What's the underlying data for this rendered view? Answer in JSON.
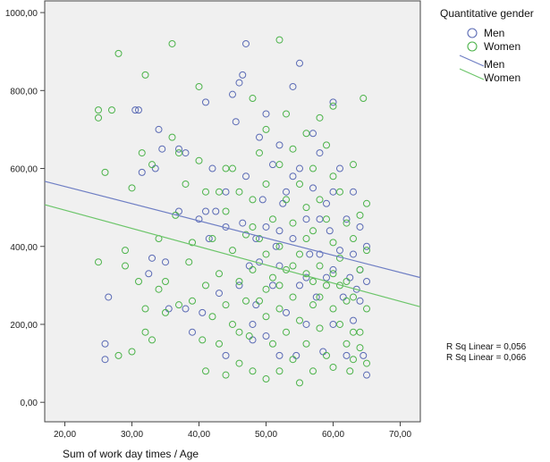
{
  "chart_data": {
    "type": "scatter",
    "xlabel": "Sum of work day times / Age",
    "ylabel": "",
    "xlim": [
      17,
      73
    ],
    "ylim": [
      -50,
      1030
    ],
    "x_ticks": [
      20,
      30,
      40,
      50,
      60,
      70
    ],
    "y_ticks": [
      0,
      200,
      400,
      600,
      800,
      1000
    ],
    "x_tick_labels": [
      "20,00",
      "30,00",
      "40,00",
      "50,00",
      "60,00",
      "70,00"
    ],
    "y_tick_labels": [
      "0,00",
      "200,00",
      "400,00",
      "600,00",
      "800,00",
      "1000,00"
    ],
    "legend": {
      "title": "Quantitative gender",
      "entries": [
        {
          "label": "Men",
          "kind": "marker",
          "color": "#5b6bb5"
        },
        {
          "label": "Women",
          "kind": "marker",
          "color": "#4cb34a"
        },
        {
          "label": "Men",
          "kind": "line",
          "color": "#6f7fc4"
        },
        {
          "label": "Women",
          "kind": "line",
          "color": "#6cc56a"
        }
      ]
    },
    "annotations": [
      "R Sq Linear = 0,056",
      "R Sq Linear = 0,066"
    ],
    "series": [
      {
        "name": "Men",
        "color": "#5b6bb5",
        "fit_line": {
          "x": [
            17,
            73
          ],
          "y": [
            567,
            320
          ]
        },
        "points": [
          [
            26,
            150
          ],
          [
            26,
            110
          ],
          [
            26.5,
            270
          ],
          [
            30.5,
            750
          ],
          [
            31,
            750
          ],
          [
            31.5,
            590
          ],
          [
            32.5,
            330
          ],
          [
            33,
            370
          ],
          [
            33.5,
            600
          ],
          [
            34,
            700
          ],
          [
            34.5,
            650
          ],
          [
            35,
            360
          ],
          [
            35.5,
            240
          ],
          [
            37,
            650
          ],
          [
            37,
            490
          ],
          [
            38,
            640
          ],
          [
            38,
            240
          ],
          [
            39,
            180
          ],
          [
            40,
            470
          ],
          [
            40.5,
            230
          ],
          [
            41,
            770
          ],
          [
            41,
            490
          ],
          [
            41.5,
            420
          ],
          [
            42,
            600
          ],
          [
            42.5,
            490
          ],
          [
            43,
            280
          ],
          [
            44,
            540
          ],
          [
            44,
            450
          ],
          [
            44,
            120
          ],
          [
            45,
            790
          ],
          [
            45.5,
            720
          ],
          [
            46,
            820
          ],
          [
            46.5,
            840
          ],
          [
            46.5,
            460
          ],
          [
            47,
            920
          ],
          [
            47,
            580
          ],
          [
            47.5,
            350
          ],
          [
            48,
            160
          ],
          [
            48.5,
            250
          ],
          [
            48.5,
            420
          ],
          [
            49,
            680
          ],
          [
            49,
            360
          ],
          [
            49.5,
            520
          ],
          [
            50,
            740
          ],
          [
            50,
            450
          ],
          [
            50,
            170
          ],
          [
            51,
            610
          ],
          [
            51,
            300
          ],
          [
            51.5,
            400
          ],
          [
            52,
            660
          ],
          [
            52,
            350
          ],
          [
            52,
            120
          ],
          [
            52.5,
            510
          ],
          [
            53,
            540
          ],
          [
            53,
            230
          ],
          [
            54,
            810
          ],
          [
            54,
            420
          ],
          [
            54.5,
            120
          ],
          [
            55,
            870
          ],
          [
            55,
            600
          ],
          [
            55,
            300
          ],
          [
            56,
            470
          ],
          [
            56,
            200
          ],
          [
            56.5,
            380
          ],
          [
            57,
            690
          ],
          [
            57,
            550
          ],
          [
            57.5,
            270
          ],
          [
            58,
            640
          ],
          [
            58,
            380
          ],
          [
            58.5,
            130
          ],
          [
            59,
            510
          ],
          [
            59,
            320
          ],
          [
            59.5,
            440
          ],
          [
            60,
            770
          ],
          [
            60,
            540
          ],
          [
            60,
            200
          ],
          [
            61,
            390
          ],
          [
            61,
            600
          ],
          [
            61.5,
            270
          ],
          [
            62,
            470
          ],
          [
            62,
            120
          ],
          [
            62.5,
            320
          ],
          [
            63,
            540
          ],
          [
            63,
            210
          ],
          [
            63,
            380
          ],
          [
            63.5,
            290
          ],
          [
            64,
            340
          ],
          [
            64,
            450
          ],
          [
            64.5,
            120
          ],
          [
            65,
            400
          ],
          [
            65,
            70
          ],
          [
            65,
            310
          ],
          [
            46,
            300
          ],
          [
            52,
            440
          ],
          [
            54,
            580
          ],
          [
            58,
            470
          ],
          [
            60,
            340
          ],
          [
            64,
            260
          ],
          [
            48,
            200
          ],
          [
            56,
            320
          ]
        ]
      },
      {
        "name": "Women",
        "color": "#4cb34a",
        "fit_line": {
          "x": [
            17,
            73
          ],
          "y": [
            507,
            245
          ]
        },
        "points": [
          [
            25,
            750
          ],
          [
            25,
            730
          ],
          [
            25,
            360
          ],
          [
            26,
            590
          ],
          [
            27,
            750
          ],
          [
            28,
            895
          ],
          [
            28,
            120
          ],
          [
            29,
            350
          ],
          [
            29,
            390
          ],
          [
            30,
            550
          ],
          [
            30,
            130
          ],
          [
            31,
            310
          ],
          [
            31.5,
            640
          ],
          [
            32,
            840
          ],
          [
            32,
            240
          ],
          [
            32,
            180
          ],
          [
            33,
            610
          ],
          [
            33,
            160
          ],
          [
            34,
            290
          ],
          [
            34,
            420
          ],
          [
            35,
            310
          ],
          [
            35,
            230
          ],
          [
            36,
            920
          ],
          [
            36,
            680
          ],
          [
            36.5,
            480
          ],
          [
            37,
            640
          ],
          [
            37,
            250
          ],
          [
            38,
            560
          ],
          [
            38.5,
            360
          ],
          [
            39,
            410
          ],
          [
            39,
            260
          ],
          [
            40,
            810
          ],
          [
            40,
            620
          ],
          [
            40.5,
            160
          ],
          [
            41,
            540
          ],
          [
            41,
            300
          ],
          [
            41,
            80
          ],
          [
            42,
            420
          ],
          [
            42,
            220
          ],
          [
            43,
            540
          ],
          [
            43,
            330
          ],
          [
            43,
            150
          ],
          [
            44,
            490
          ],
          [
            44,
            250
          ],
          [
            44,
            70
          ],
          [
            45,
            600
          ],
          [
            45,
            390
          ],
          [
            45,
            200
          ],
          [
            46,
            540
          ],
          [
            46,
            310
          ],
          [
            46,
            100
          ],
          [
            47,
            430
          ],
          [
            47,
            260
          ],
          [
            47.5,
            170
          ],
          [
            48,
            780
          ],
          [
            48,
            520
          ],
          [
            48,
            340
          ],
          [
            48,
            80
          ],
          [
            49,
            640
          ],
          [
            49,
            420
          ],
          [
            49,
            260
          ],
          [
            50,
            700
          ],
          [
            50,
            560
          ],
          [
            50,
            380
          ],
          [
            50,
            220
          ],
          [
            50,
            60
          ],
          [
            51,
            470
          ],
          [
            51,
            320
          ],
          [
            51,
            150
          ],
          [
            52,
            930
          ],
          [
            52,
            610
          ],
          [
            52,
            400
          ],
          [
            52,
            240
          ],
          [
            52,
            80
          ],
          [
            53,
            740
          ],
          [
            53,
            520
          ],
          [
            53,
            340
          ],
          [
            53,
            180
          ],
          [
            54,
            650
          ],
          [
            54,
            460
          ],
          [
            54,
            270
          ],
          [
            54,
            110
          ],
          [
            55,
            560
          ],
          [
            55,
            380
          ],
          [
            55,
            210
          ],
          [
            55,
            50
          ],
          [
            56,
            690
          ],
          [
            56,
            500
          ],
          [
            56,
            330
          ],
          [
            56,
            150
          ],
          [
            57,
            600
          ],
          [
            57,
            440
          ],
          [
            57,
            250
          ],
          [
            57,
            80
          ],
          [
            58,
            730
          ],
          [
            58,
            520
          ],
          [
            58,
            350
          ],
          [
            58,
            190
          ],
          [
            59,
            660
          ],
          [
            59,
            470
          ],
          [
            59,
            300
          ],
          [
            59,
            120
          ],
          [
            60,
            760
          ],
          [
            60,
            580
          ],
          [
            60,
            410
          ],
          [
            60,
            240
          ],
          [
            60,
            90
          ],
          [
            61,
            540
          ],
          [
            61,
            370
          ],
          [
            61,
            200
          ],
          [
            62,
            460
          ],
          [
            62,
            310
          ],
          [
            62,
            150
          ],
          [
            62.5,
            80
          ],
          [
            63,
            610
          ],
          [
            63,
            420
          ],
          [
            63,
            270
          ],
          [
            63,
            110
          ],
          [
            64,
            480
          ],
          [
            64,
            340
          ],
          [
            64,
            180
          ],
          [
            64.5,
            780
          ],
          [
            65,
            390
          ],
          [
            65,
            240
          ],
          [
            65,
            100
          ],
          [
            65,
            510
          ],
          [
            44,
            600
          ],
          [
            48,
            450
          ],
          [
            52,
            300
          ],
          [
            56,
            420
          ],
          [
            58,
            270
          ],
          [
            60,
            330
          ],
          [
            62,
            260
          ],
          [
            63,
            180
          ],
          [
            64,
            140
          ],
          [
            46,
            180
          ],
          [
            50,
            290
          ],
          [
            54,
            350
          ],
          [
            57,
            310
          ],
          [
            61,
            300
          ]
        ]
      }
    ]
  }
}
